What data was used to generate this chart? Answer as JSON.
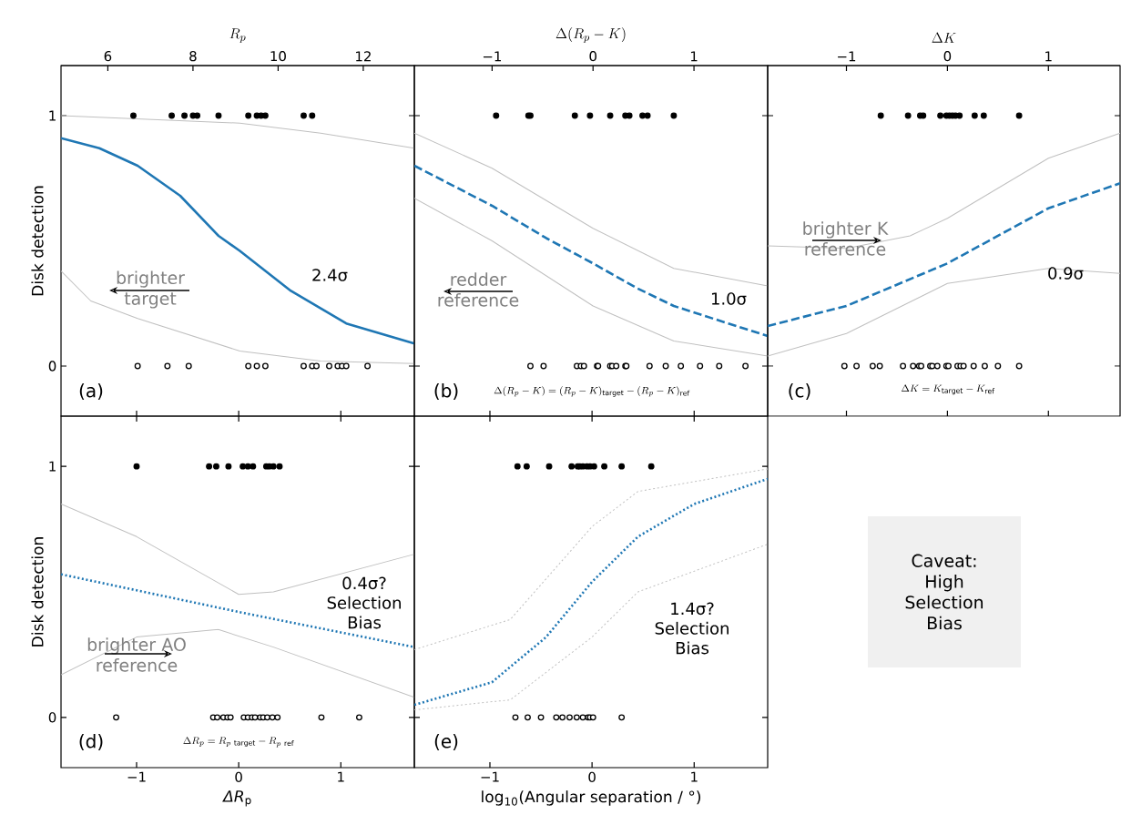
{
  "chart_data": [
    {
      "type": "line",
      "ylabel": "Disk detection",
      "x2label": "R_p",
      "xlim": [
        -1.74,
        1.72
      ],
      "xticks": [
        -1,
        0,
        1
      ],
      "x2lim": [
        4.9,
        13.2
      ],
      "x2ticks": [
        6,
        8,
        10,
        12
      ],
      "ylim": [
        -0.2,
        1.2
      ],
      "yticks": [
        0,
        1
      ],
      "tick_labels": "y",
      "series": [
        {
          "type": "line",
          "axis": "x2",
          "color": "#1f77b4",
          "line_style": "solid",
          "x": [
            4.9,
            5.8,
            6.7,
            7.7,
            8.6,
            9.1,
            10.3,
            11.6,
            13.2
          ],
          "values": [
            0.91,
            0.87,
            0.8,
            0.68,
            0.52,
            0.46,
            0.3,
            0.17,
            0.09
          ]
        },
        {
          "type": "line",
          "axis": "x2",
          "color": "#c0c0c0",
          "line_style": "solid",
          "x": [
            4.9,
            9.1,
            11.0,
            13.2
          ],
          "values": [
            1.0,
            0.97,
            0.93,
            0.87
          ]
        },
        {
          "type": "line",
          "axis": "x2",
          "color": "#c0c0c0",
          "line_style": "solid",
          "x": [
            4.9,
            5.6,
            6.7,
            9.1,
            11.0,
            13.2
          ],
          "values": [
            0.38,
            0.26,
            0.19,
            0.06,
            0.02,
            0.01
          ]
        },
        {
          "type": "scatter",
          "axis": "x2",
          "color": "#000000",
          "x": [
            6.6,
            7.5,
            7.8,
            8.0,
            8.1,
            8.6,
            9.3,
            9.5,
            9.6,
            9.7,
            10.6,
            10.8
          ],
          "values": [
            1,
            1,
            1,
            1,
            1,
            1,
            1,
            1,
            1,
            1,
            1,
            1
          ]
        },
        {
          "type": "scatter",
          "axis": "x2",
          "color": "#000000",
          "x": [
            6.7,
            7.4,
            7.9,
            9.3,
            9.5,
            9.7,
            10.6,
            10.8,
            10.9,
            11.2,
            11.4,
            11.5,
            11.6,
            12.1
          ],
          "values": [
            0,
            0,
            0,
            0,
            0,
            0,
            0,
            0,
            0,
            0,
            0,
            0,
            0,
            0
          ]
        }
      ],
      "annotations": [
        "brighter target",
        "2.4σ",
        "(a)"
      ]
    },
    {
      "type": "line",
      "x2label": "\\Delta(R_p - K)",
      "xlim": [
        -1.74,
        1.72
      ],
      "xticks": [
        -1,
        0,
        1
      ],
      "x2lim": [
        -1.77,
        1.73
      ],
      "x2ticks": [
        {
          "value": -1,
          "label": "−1"
        },
        0,
        1
      ],
      "ylim": [
        -0.2,
        1.2
      ],
      "yticks": [
        0,
        1
      ],
      "tick_labels": false,
      "series": [
        {
          "type": "line",
          "axis": "x2",
          "color": "#1f77b4",
          "line_style": "dashed",
          "x": [
            -1.77,
            -1.0,
            -0.46,
            0,
            0.44,
            0.8,
            1.34,
            1.73
          ],
          "values": [
            0.8,
            0.64,
            0.51,
            0.41,
            0.31,
            0.24,
            0.17,
            0.12
          ]
        },
        {
          "type": "line",
          "axis": "x2",
          "color": "#c0c0c0",
          "line_style": "solid",
          "x": [
            -1.77,
            -1.0,
            0,
            0.8,
            1.73
          ],
          "values": [
            0.93,
            0.79,
            0.55,
            0.39,
            0.32
          ]
        },
        {
          "type": "line",
          "axis": "x2",
          "color": "#c0c0c0",
          "line_style": "solid",
          "x": [
            -1.77,
            -1.0,
            0,
            0.8,
            1.73
          ],
          "values": [
            0.67,
            0.5,
            0.24,
            0.1,
            0.04
          ]
        },
        {
          "type": "scatter",
          "axis": "x2",
          "color": "#000000",
          "x": [
            -0.96,
            -0.64,
            -0.62,
            -0.18,
            -0.03,
            0.17,
            0.32,
            0.36,
            0.49,
            0.54,
            0.8
          ],
          "values": [
            1,
            1,
            1,
            1,
            1,
            1,
            1,
            1,
            1,
            1,
            1
          ]
        },
        {
          "type": "scatter",
          "axis": "x2",
          "color": "#000000",
          "x": [
            -0.62,
            -0.49,
            -0.16,
            -0.12,
            -0.09,
            0.04,
            0.05,
            0.17,
            0.19,
            0.23,
            0.32,
            0.33,
            0.56,
            0.72,
            0.87,
            1.06,
            1.25,
            1.51
          ],
          "values": [
            0,
            0,
            0,
            0,
            0,
            0,
            0,
            0,
            0,
            0,
            0,
            0,
            0,
            0,
            0,
            0,
            0,
            0
          ]
        }
      ],
      "annotations": [
        "redder reference",
        "1.0σ",
        "(b)",
        "\\Delta(R_p - K) = (R_p - K)_\\mathrm{target} - (R_p - K)_\\mathrm{ref}"
      ]
    },
    {
      "type": "line",
      "x2label": "\\Delta K",
      "xlim": [
        -1.78,
        1.71
      ],
      "xticks": [
        -1,
        0,
        1
      ],
      "x2lim": [
        -1.78,
        1.71
      ],
      "x2ticks": [
        {
          "value": -1,
          "label": "−1"
        },
        0,
        1
      ],
      "ylim": [
        -0.2,
        1.2
      ],
      "yticks": [
        0,
        1
      ],
      "tick_labels": false,
      "series": [
        {
          "type": "line",
          "axis": "x2",
          "color": "#1f77b4",
          "line_style": "dashed",
          "x": [
            -1.78,
            -1.0,
            0,
            1.0,
            1.71
          ],
          "values": [
            0.16,
            0.24,
            0.41,
            0.63,
            0.73
          ]
        },
        {
          "type": "line",
          "axis": "x2",
          "color": "#c0c0c0",
          "line_style": "solid",
          "x": [
            -1.78,
            -1.0,
            -0.37,
            0,
            1.0,
            1.71
          ],
          "values": [
            0.48,
            0.47,
            0.52,
            0.59,
            0.83,
            0.93
          ]
        },
        {
          "type": "line",
          "axis": "x2",
          "color": "#c0c0c0",
          "line_style": "solid",
          "x": [
            -1.78,
            -1.0,
            0,
            1.0,
            1.71
          ],
          "values": [
            0.04,
            0.13,
            0.33,
            0.39,
            0.37
          ]
        },
        {
          "type": "scatter",
          "axis": "x2",
          "color": "#000000",
          "x": [
            -0.66,
            -0.39,
            -0.27,
            -0.24,
            -0.07,
            -0.01,
            0.02,
            0.05,
            0.08,
            0.12,
            0.27,
            0.36,
            0.71
          ],
          "values": [
            1,
            1,
            1,
            1,
            1,
            1,
            1,
            1,
            1,
            1,
            1,
            1,
            1
          ]
        },
        {
          "type": "scatter",
          "axis": "x2",
          "color": "#000000",
          "x": [
            -1.02,
            -0.9,
            -0.74,
            -0.67,
            -0.44,
            -0.34,
            -0.28,
            -0.26,
            -0.17,
            -0.15,
            -0.1,
            -0.01,
            0.01,
            0.1,
            0.13,
            0.16,
            0.26,
            0.37,
            0.5,
            0.71
          ],
          "values": [
            0,
            0,
            0,
            0,
            0,
            0,
            0,
            0,
            0,
            0,
            0,
            0,
            0,
            0,
            0,
            0,
            0,
            0,
            0,
            0
          ]
        }
      ],
      "annotations": [
        "brighter K reference",
        "0.9σ",
        "(c)",
        "\\Delta K = K_\\mathrm{target} - K_\\mathrm{ref}"
      ]
    },
    {
      "type": "line",
      "ylabel": "Disk detection",
      "xlabel": "*ΔR*$_{p}$",
      "xlim": [
        -1.74,
        1.72
      ],
      "xticks": [
        {
          "value": -1,
          "label": "−1"
        },
        0,
        1
      ],
      "ylim": [
        -0.2,
        1.2
      ],
      "yticks": [
        0,
        1
      ],
      "series": [
        {
          "type": "line",
          "color": "#1f77b4",
          "line_style": "dotted",
          "x": [
            -1.74,
            0,
            1.72
          ],
          "values": [
            0.57,
            0.42,
            0.28
          ]
        },
        {
          "type": "line",
          "color": "#c0c0c0",
          "line_style": "solid",
          "x": [
            -1.74,
            -1,
            0,
            0.34,
            1.72
          ],
          "values": [
            0.85,
            0.72,
            0.49,
            0.5,
            0.65
          ]
        },
        {
          "type": "line",
          "color": "#c0c0c0",
          "line_style": "solid",
          "x": [
            -1.74,
            -1,
            -0.2,
            0.34,
            1.72
          ],
          "values": [
            0.17,
            0.32,
            0.35,
            0.28,
            0.08
          ]
        },
        {
          "type": "scatter",
          "color": "#000000",
          "x": [
            -1.0,
            -0.29,
            -0.22,
            -0.1,
            0.04,
            0.09,
            0.14,
            0.27,
            0.3,
            0.34,
            0.4
          ],
          "values": [
            1,
            1,
            1,
            1,
            1,
            1,
            1,
            1,
            1,
            1,
            1
          ]
        },
        {
          "type": "scatter",
          "color": "#000000",
          "x": [
            -1.2,
            -0.25,
            -0.21,
            -0.15,
            -0.11,
            -0.08,
            0.05,
            0.09,
            0.13,
            0.16,
            0.21,
            0.24,
            0.28,
            0.33,
            0.38,
            0.81,
            1.18
          ],
          "values": [
            0,
            0,
            0,
            0,
            0,
            0,
            0,
            0,
            0,
            0,
            0,
            0,
            0,
            0,
            0,
            0,
            0
          ]
        }
      ],
      "annotations": [
        "brighter AO reference",
        "0.4σ? Selection Bias",
        "(d)",
        "\\Delta R_p = R_{p\\ \\mathrm{target}} - R_{p\\ \\mathrm{ref}}"
      ]
    },
    {
      "type": "line",
      "xlabel": "log$_{10}$(Angular separation / °)",
      "xlim": [
        -1.74,
        1.72
      ],
      "xticks": [
        {
          "value": -1,
          "label": "−1"
        },
        0,
        1
      ],
      "ylim": [
        -0.2,
        1.2
      ],
      "yticks": [
        0,
        1
      ],
      "tick_labels": "x",
      "series": [
        {
          "type": "line",
          "color": "#1f77b4",
          "line_style": "dotted",
          "x": [
            -1.74,
            -0.98,
            -0.45,
            0,
            0.45,
            1.0,
            1.72
          ],
          "values": [
            0.05,
            0.14,
            0.32,
            0.54,
            0.72,
            0.85,
            0.95
          ]
        },
        {
          "type": "line",
          "color": "#c0c0c0",
          "line_style": "dotted",
          "x": [
            -1.74,
            -0.8,
            0,
            0.45,
            1.72
          ],
          "values": [
            0.27,
            0.39,
            0.76,
            0.9,
            0.99
          ]
        },
        {
          "type": "line",
          "color": "#c0c0c0",
          "line_style": "dotted",
          "x": [
            -1.74,
            -0.8,
            0,
            0.45,
            1.72
          ],
          "values": [
            0.03,
            0.07,
            0.32,
            0.5,
            0.69
          ]
        },
        {
          "type": "scatter",
          "color": "#000000",
          "x": [
            -0.73,
            -0.64,
            -0.42,
            -0.2,
            -0.14,
            -0.12,
            -0.09,
            -0.05,
            -0.02,
            0.02,
            0.12,
            0.29,
            0.58
          ],
          "values": [
            1,
            1,
            1,
            1,
            1,
            1,
            1,
            1,
            1,
            1,
            1,
            1,
            1
          ]
        },
        {
          "type": "scatter",
          "color": "#000000",
          "x": [
            -0.75,
            -0.63,
            -0.5,
            -0.35,
            -0.29,
            -0.22,
            -0.15,
            -0.09,
            -0.04,
            -0.02,
            0.01,
            0.29
          ],
          "values": [
            0,
            0,
            0,
            0,
            0,
            0,
            0,
            0,
            0,
            0,
            0,
            0
          ]
        }
      ],
      "annotations": [
        "1.4σ? Selection Bias",
        "(e)"
      ]
    },
    {
      "type": "other",
      "annotations": [
        "Caveat: High Selection Bias"
      ]
    }
  ]
}
